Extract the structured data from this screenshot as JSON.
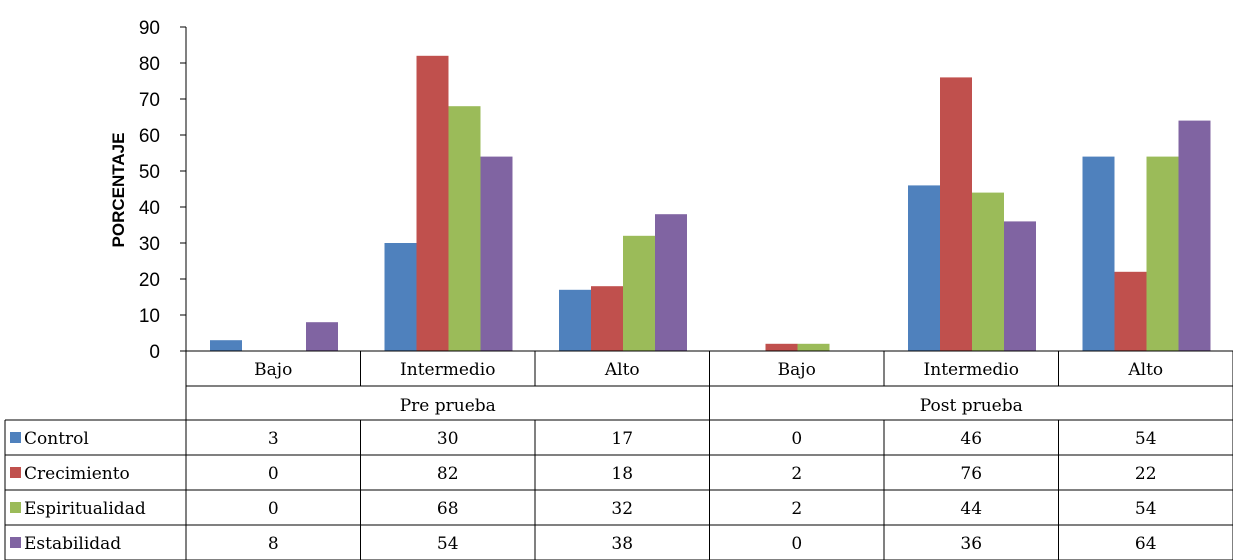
{
  "chart_data": {
    "type": "bar",
    "ylabel": "PORCENTAJE",
    "ylim": [
      0,
      90
    ],
    "ytick_step": 10,
    "groups": [
      {
        "name": "Pre prueba",
        "categories": [
          "Bajo",
          "Intermedio",
          "Alto"
        ]
      },
      {
        "name": "Post prueba",
        "categories": [
          "Bajo",
          "Intermedio",
          "Alto"
        ]
      }
    ],
    "categories": [
      "Bajo",
      "Intermedio",
      "Alto",
      "Bajo",
      "Intermedio",
      "Alto"
    ],
    "series": [
      {
        "name": "Control",
        "color": "#4F81BD",
        "values": [
          3,
          30,
          17,
          0,
          46,
          54
        ]
      },
      {
        "name": "Crecimiento",
        "color": "#C0504D",
        "values": [
          0,
          82,
          18,
          2,
          76,
          22
        ]
      },
      {
        "name": "Espiritualidad",
        "color": "#9BBB59",
        "values": [
          0,
          68,
          32,
          2,
          44,
          54
        ]
      },
      {
        "name": "Estabilidad",
        "color": "#8064A2",
        "values": [
          8,
          54,
          38,
          0,
          36,
          64
        ]
      }
    ],
    "grid": false,
    "legend": "data table rows below chart"
  }
}
